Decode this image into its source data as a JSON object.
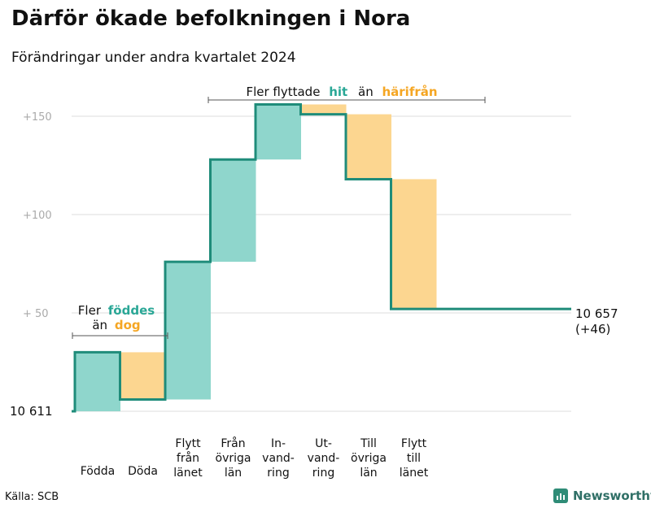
{
  "title": "Därför ökade befolkningen i Nora",
  "subtitle": "Förändringar under andra kvartalet 2024",
  "source": "Källa: SCB",
  "brand": "Newsworthy",
  "colors": {
    "increase": "#8fd6cc",
    "decrease": "#fcd690",
    "line": "#1f8c7a",
    "hit": "#2aa796",
    "orange": "#f5a623",
    "grid": "#dddddd",
    "tick": "#aaaaaa"
  },
  "annotations": {
    "top": {
      "before": "Fler flyttade",
      "hit": "hit",
      "middle": "än",
      "harifran": "härifrån"
    },
    "left": {
      "line1": "Fler",
      "fodes": "föddes",
      "line2": "än",
      "dog": "dog"
    }
  },
  "chart_data": {
    "type": "waterfall",
    "title": "Därför ökade befolkningen i Nora",
    "subtitle": "Förändringar under andra kvartalet 2024",
    "base_population": 10611,
    "base_label": "10 611",
    "end_population": 10657,
    "end_label": "10 657",
    "end_change_label": "(+46)",
    "y_axis": {
      "ticks": [
        {
          "value": 50,
          "label": "+  50"
        },
        {
          "value": 100,
          "label": "+100"
        },
        {
          "value": 150,
          "label": "+150"
        }
      ],
      "range": [
        0,
        150
      ],
      "grid": true
    },
    "steps": [
      {
        "name": "Födda",
        "label_lines": [
          "Födda"
        ],
        "change": 30
      },
      {
        "name": "Döda",
        "label_lines": [
          "Döda"
        ],
        "change": -24
      },
      {
        "name": "Flytt från länet",
        "label_lines": [
          "Flytt",
          "från",
          "länet"
        ],
        "change": 70
      },
      {
        "name": "Från övriga län",
        "label_lines": [
          "Från",
          "övriga",
          "län"
        ],
        "change": 52
      },
      {
        "name": "Invandring",
        "label_lines": [
          "In-",
          "vand-",
          "ring"
        ],
        "change": 28
      },
      {
        "name": "Utvandring",
        "label_lines": [
          "Ut-",
          "vand-",
          "ring"
        ],
        "change": -5
      },
      {
        "name": "Till övriga län",
        "label_lines": [
          "Till",
          "övriga",
          "län"
        ],
        "change": -33
      },
      {
        "name": "Flytt till länet",
        "label_lines": [
          "Flytt",
          "till",
          "länet"
        ],
        "change": -66
      }
    ]
  }
}
